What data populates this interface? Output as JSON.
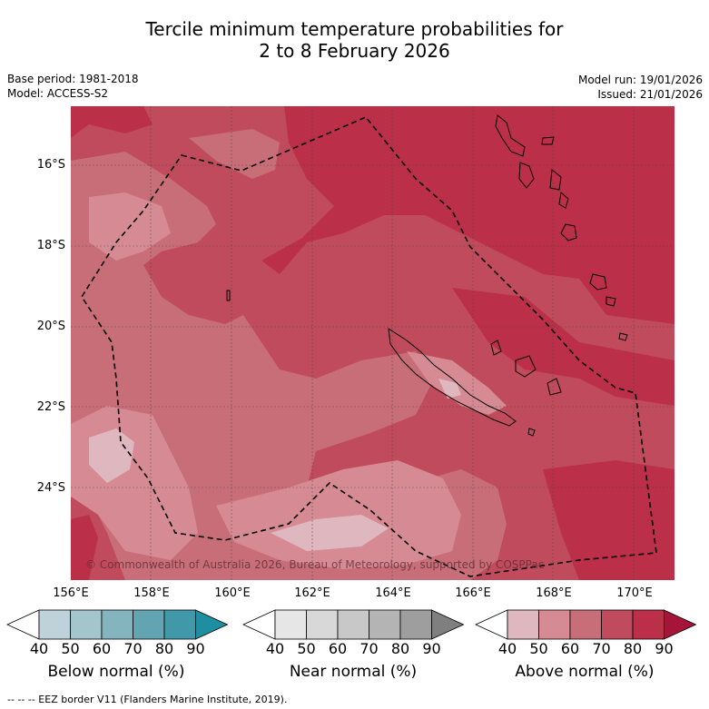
{
  "title": {
    "line1": "Tercile minimum temperature probabilities for",
    "line2": "2 to 8 February 2026"
  },
  "meta": {
    "base_period": "Base period: 1981-2018",
    "model": "Model: ACCESS-S2",
    "model_run": "Model run: 19/01/2026",
    "issued": "Issued: 21/01/2026"
  },
  "axes": {
    "x_ticks": [
      "156°E",
      "158°E",
      "160°E",
      "162°E",
      "164°E",
      "166°E",
      "168°E",
      "170°E"
    ],
    "y_ticks": [
      "16°S",
      "18°S",
      "20°S",
      "22°S",
      "24°S"
    ]
  },
  "copyright": "© Commonwealth of Australia 2026, Bureau of Meteorology, supported by COSPPac",
  "colorbars": [
    {
      "label": "Below normal (%)",
      "ticks": [
        "40",
        "50",
        "60",
        "70",
        "80",
        "90"
      ],
      "colors": [
        "#ffffff",
        "#bed3d9",
        "#a3c5cb",
        "#84b5bf",
        "#63a4b2",
        "#4198a8",
        "#1e8fa0"
      ]
    },
    {
      "label": "Near normal (%)",
      "ticks": [
        "40",
        "50",
        "60",
        "70",
        "80",
        "90"
      ],
      "colors": [
        "#ffffff",
        "#e6e6e6",
        "#d8d8d8",
        "#c8c8c8",
        "#b4b4b4",
        "#9e9e9e",
        "#7f7f7f"
      ]
    },
    {
      "label": "Above normal (%)",
      "ticks": [
        "40",
        "50",
        "60",
        "70",
        "80",
        "90"
      ],
      "colors": [
        "#ffffff",
        "#dfb7bf",
        "#d68a93",
        "#c86e78",
        "#c04b5c",
        "#bb2f49",
        "#a5153a"
      ]
    }
  ],
  "footer": "--  --  -- EEZ border V11 (Flanders Marine Institute, 2019).",
  "colors": {
    "above_50": "#dfb7bf",
    "above_60": "#d68a93",
    "above_70": "#c86e78",
    "above_80": "#bb2f49",
    "base": "#c04b5c"
  }
}
